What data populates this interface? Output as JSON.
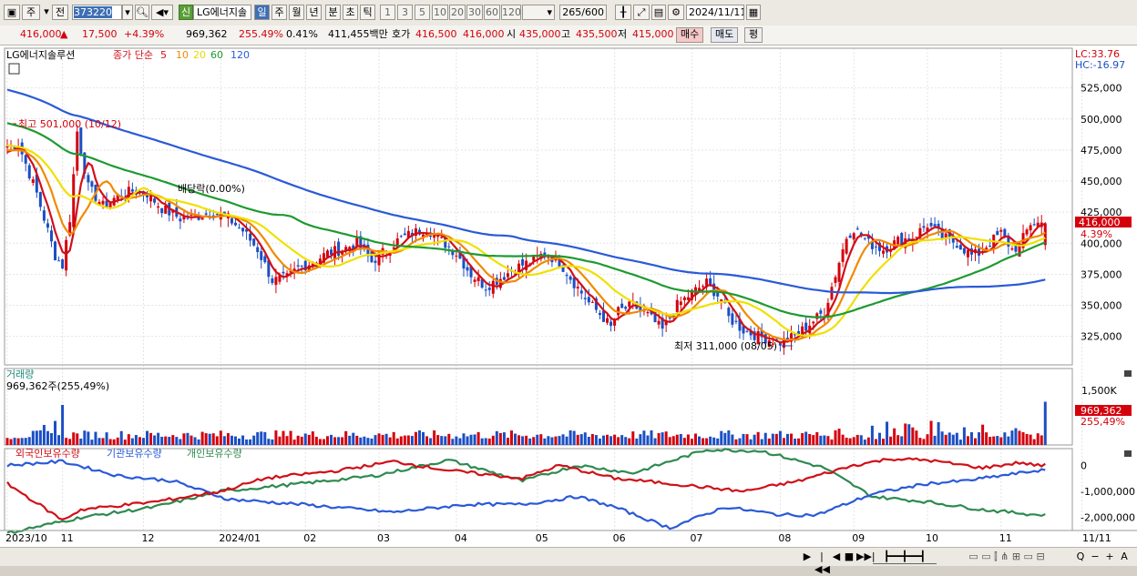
{
  "toolbar": {
    "period_select": "주",
    "prev_label": "전",
    "stock_code": "373220",
    "stock_name_tag": "신",
    "stock_name": "LG에너지솔",
    "timeframes": [
      "일",
      "주",
      "월",
      "년",
      "분",
      "초",
      "틱"
    ],
    "selected_timeframe": "일",
    "intervals": [
      "1",
      "3",
      "5",
      "10",
      "20",
      "30",
      "60",
      "120"
    ],
    "count_value": "265",
    "count_total": "/600",
    "date_value": "2024/11/11"
  },
  "quote": {
    "price": "416,000",
    "change": "17,500",
    "change_pct": "+4.39%",
    "volume": "969,362",
    "volume_ratio": "255.49%",
    "turnover_pct": "0.41%",
    "amount": "411,455백만",
    "hoga_label": "호가",
    "ask": "416,500",
    "bid": "416,000",
    "open_label": "시",
    "open": "435,000",
    "high_label": "고",
    "high": "435,500",
    "low_label": "저",
    "low": "415,000",
    "buy_label": "매수",
    "sell_label": "매도",
    "flat_label": "평"
  },
  "colors": {
    "up": "#d4000c",
    "down": "#1a4fc4",
    "ma5": "#d01018",
    "ma10": "#f08a00",
    "ma20": "#f0e000",
    "ma60": "#1e9a30",
    "ma120": "#2a5ad8",
    "foreign": "#d01018",
    "institution": "#2a5ad8",
    "individual": "#2e8a50"
  },
  "chart_data": [
    {
      "type": "candlestick",
      "title": "LG에너지솔루션",
      "indicator_label": "종가 단순",
      "ma_periods": [
        "5",
        "10",
        "20",
        "60",
        "120"
      ],
      "lc_label": "LC:33.76",
      "hc_label": "HC:-16.97",
      "ylim": [
        302000,
        557000
      ],
      "y_ticks": [
        "525,000",
        "500,000",
        "475,000",
        "450,000",
        "425,000",
        "400,000",
        "375,000",
        "350,000",
        "325,000"
      ],
      "y_tick_values": [
        525000,
        500000,
        475000,
        450000,
        425000,
        400000,
        375000,
        350000,
        325000
      ],
      "x_ticks": [
        "2023/10",
        "11",
        "12",
        "2024/01",
        "02",
        "03",
        "04",
        "05",
        "06",
        "07",
        "08",
        "09",
        "10",
        "11",
        "11/11"
      ],
      "x_tick_index": [
        0,
        15,
        37,
        58,
        81,
        101,
        122,
        144,
        165,
        186,
        210,
        230,
        250,
        270,
        292
      ],
      "current_price_label": "416,000",
      "current_pct_label": "4.39%",
      "high_annotation": "최고 501,000 (10/12)",
      "low_annotation": "최저 311,000 (08/05)",
      "event_annotation": "배당락(0.00%)",
      "anchors_index": [
        0,
        3,
        8,
        13,
        15,
        17,
        19,
        22,
        26,
        30,
        34,
        38,
        42,
        47,
        52,
        56,
        60,
        64,
        68,
        72,
        76,
        79,
        83,
        87,
        91,
        95,
        99,
        103,
        106,
        110,
        114,
        118,
        122,
        126,
        130,
        134,
        138,
        142,
        146,
        150,
        154,
        158,
        162,
        164,
        166,
        170,
        174,
        178,
        182,
        186,
        190,
        194,
        196,
        200,
        204,
        208,
        210,
        214,
        218,
        222,
        226,
        228,
        230,
        234,
        238,
        242,
        246,
        250,
        254,
        258,
        262,
        264,
        266,
        270,
        273,
        275,
        278
      ],
      "anchors_close": [
        478000,
        480000,
        440000,
        390000,
        382000,
        420000,
        490000,
        445000,
        430000,
        438000,
        442000,
        440000,
        428000,
        420000,
        422000,
        425000,
        420000,
        410000,
        395000,
        370000,
        372000,
        380000,
        385000,
        392000,
        395000,
        400000,
        385000,
        395000,
        402000,
        408000,
        412000,
        402000,
        392000,
        375000,
        365000,
        372000,
        380000,
        385000,
        392000,
        385000,
        368000,
        352000,
        340000,
        332000,
        345000,
        350000,
        342000,
        330000,
        350000,
        360000,
        368000,
        355000,
        340000,
        330000,
        325000,
        322000,
        320000,
        325000,
        335000,
        345000,
        385000,
        405000,
        412000,
        400000,
        395000,
        402000,
        405000,
        415000,
        405000,
        400000,
        390000,
        392000,
        398000,
        408000,
        395000,
        398000,
        416000
      ]
    },
    {
      "type": "bar",
      "title": "거래량",
      "value_label": "969,362주(255,49%)",
      "y_ticks": [
        "1,500K"
      ],
      "current_value_label": "969,362",
      "current_pct_label": "255,49%"
    },
    {
      "type": "line",
      "series_labels": [
        "외국인보유수량",
        "기관보유수량",
        "개인보유수량"
      ],
      "y_ticks": [
        "0",
        "-1,000,000",
        "-2,000,000"
      ],
      "y_tick_values": [
        0,
        -1000000,
        -2000000
      ],
      "ylim": [
        -2500000,
        500000
      ],
      "foreign_anchors": [
        [
          0,
          -700000
        ],
        [
          15,
          -2100000
        ],
        [
          20,
          -1700000
        ],
        [
          40,
          -1400000
        ],
        [
          58,
          -1000000
        ],
        [
          70,
          -500000
        ],
        [
          90,
          -200000
        ],
        [
          105,
          150000
        ],
        [
          120,
          -200000
        ],
        [
          140,
          -500000
        ],
        [
          150,
          0
        ],
        [
          165,
          -500000
        ],
        [
          180,
          -700000
        ],
        [
          200,
          -1000000
        ],
        [
          215,
          -600000
        ],
        [
          230,
          0
        ],
        [
          240,
          250000
        ],
        [
          250,
          200000
        ],
        [
          265,
          -100000
        ],
        [
          275,
          100000
        ],
        [
          280,
          0
        ]
      ],
      "institution_anchors": [
        [
          0,
          0
        ],
        [
          15,
          150000
        ],
        [
          30,
          -400000
        ],
        [
          45,
          -600000
        ],
        [
          60,
          -1300000
        ],
        [
          80,
          -1500000
        ],
        [
          105,
          -1800000
        ],
        [
          125,
          -1500000
        ],
        [
          140,
          -1500000
        ],
        [
          155,
          -1200000
        ],
        [
          165,
          -1600000
        ],
        [
          180,
          -2400000
        ],
        [
          195,
          -1600000
        ],
        [
          210,
          -1900000
        ],
        [
          220,
          -1900000
        ],
        [
          235,
          -1100000
        ],
        [
          250,
          -700000
        ],
        [
          260,
          -600000
        ],
        [
          270,
          -400000
        ],
        [
          280,
          -200000
        ]
      ],
      "individual_anchors": [
        [
          0,
          -2600000
        ],
        [
          20,
          -2000000
        ],
        [
          40,
          -1600000
        ],
        [
          58,
          -1000000
        ],
        [
          80,
          -700000
        ],
        [
          100,
          -400000
        ],
        [
          120,
          200000
        ],
        [
          140,
          -600000
        ],
        [
          155,
          0
        ],
        [
          170,
          -300000
        ],
        [
          190,
          600000
        ],
        [
          205,
          550000
        ],
        [
          222,
          -100000
        ],
        [
          235,
          -1200000
        ],
        [
          250,
          -1400000
        ],
        [
          265,
          -1700000
        ],
        [
          280,
          -1900000
        ]
      ]
    }
  ],
  "bottom": {
    "controls": [
      "▶",
      "|◀◀",
      "◀",
      "■",
      "▶▶|"
    ],
    "right_controls": [
      "Q",
      "−",
      "+",
      "A"
    ]
  }
}
